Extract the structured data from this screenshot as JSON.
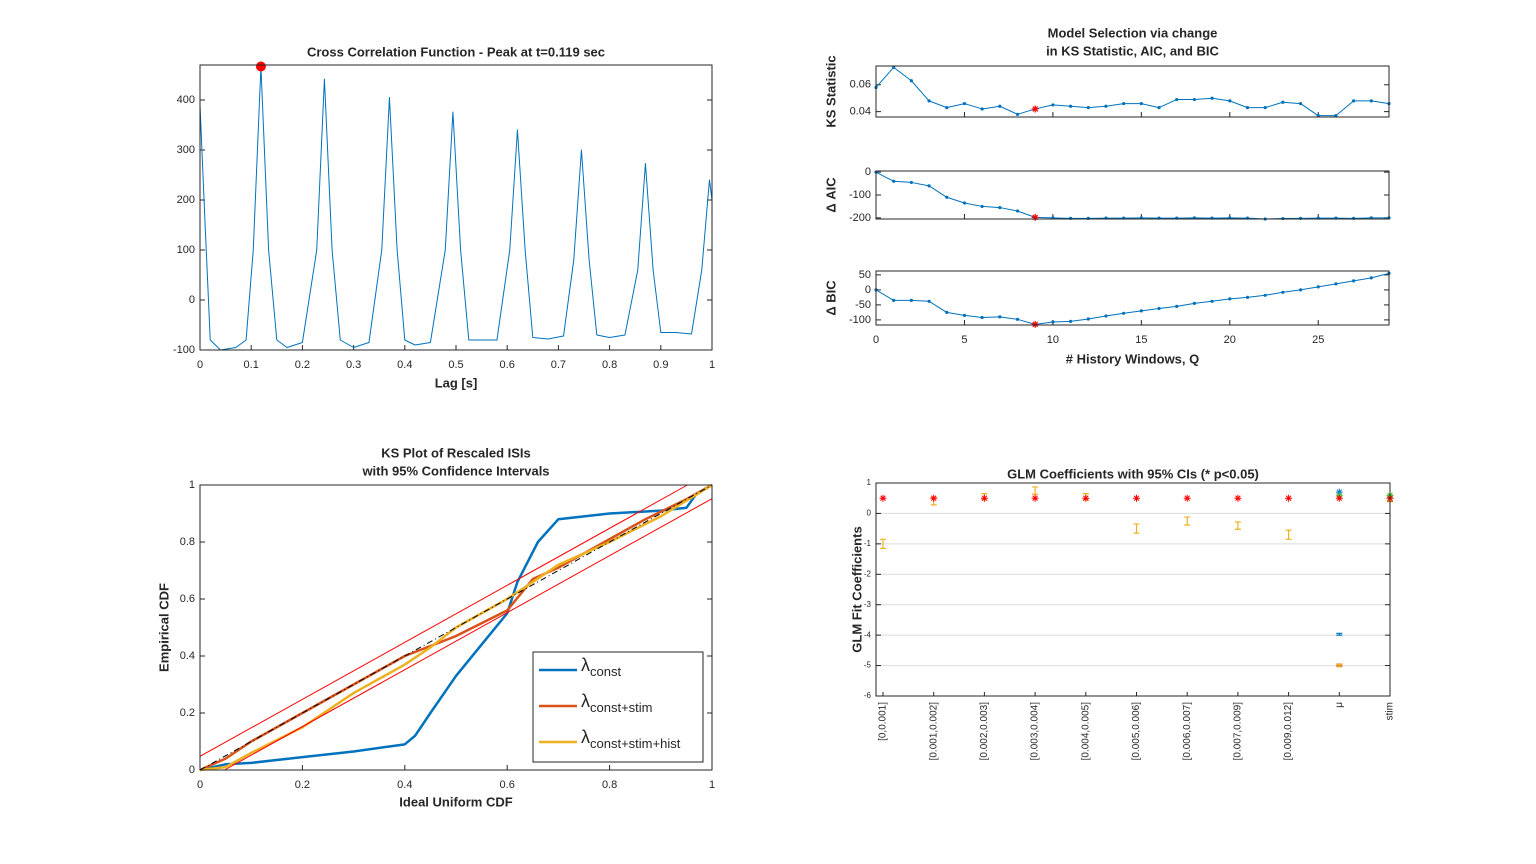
{
  "chart_data": [
    {
      "type": "line",
      "title": "Cross Correlation Function - Peak at t=0.119 sec",
      "xlabel": "Lag [s]",
      "x": [
        0,
        0.01,
        0.02,
        0.04,
        0.07,
        0.09,
        0.104,
        0.119,
        0.134,
        0.15,
        0.17,
        0.2,
        0.228,
        0.243,
        0.258,
        0.274,
        0.3,
        0.33,
        0.355,
        0.37,
        0.385,
        0.4,
        0.42,
        0.45,
        0.479,
        0.494,
        0.509,
        0.525,
        0.55,
        0.58,
        0.605,
        0.62,
        0.635,
        0.65,
        0.68,
        0.71,
        0.73,
        0.745,
        0.76,
        0.775,
        0.8,
        0.83,
        0.855,
        0.87,
        0.885,
        0.9,
        0.93,
        0.96,
        0.98,
        0.995,
        1
      ],
      "series": [
        {
          "color": "#0072bd",
          "values": [
            390,
            150,
            -80,
            -100,
            -95,
            -80,
            100,
            467,
            100,
            -80,
            -95,
            -85,
            100,
            442,
            100,
            -80,
            -95,
            -85,
            100,
            405,
            100,
            -80,
            -90,
            -85,
            100,
            376,
            100,
            -80,
            -80,
            -80,
            100,
            340,
            100,
            -75,
            -78,
            -72,
            80,
            300,
            80,
            -70,
            -75,
            -70,
            60,
            273,
            60,
            -65,
            -65,
            -68,
            60,
            240,
            200
          ]
        }
      ],
      "highlight": {
        "x": 0.119,
        "y": 467,
        "color": "#ff0000",
        "marker": "circle"
      },
      "xlim": [
        0,
        1
      ],
      "ylim": [
        -100,
        470
      ],
      "xticks": [
        0,
        0.1,
        0.2,
        0.3,
        0.4,
        0.5,
        0.6,
        0.7,
        0.8,
        0.9,
        1
      ],
      "yticks": [
        -100,
        0,
        100,
        200,
        300,
        400
      ]
    },
    {
      "type": "line",
      "title": [
        "Model Selection via change",
        "in KS Statistic, AIC, and BIC"
      ],
      "ylabel": "KS Statistic",
      "marker": "dot",
      "x": [
        0,
        1,
        2,
        3,
        4,
        5,
        6,
        7,
        8,
        9,
        10,
        11,
        12,
        13,
        14,
        15,
        16,
        17,
        18,
        19,
        20,
        21,
        22,
        23,
        24,
        25,
        26,
        27,
        28,
        29
      ],
      "series": [
        {
          "color": "#0072bd",
          "values": [
            0.058,
            0.073,
            0.063,
            0.048,
            0.043,
            0.046,
            0.042,
            0.044,
            0.038,
            0.042,
            0.045,
            0.044,
            0.043,
            0.044,
            0.046,
            0.046,
            0.043,
            0.049,
            0.049,
            0.05,
            0.048,
            0.043,
            0.043,
            0.047,
            0.046,
            0.037,
            0.037,
            0.048,
            0.048,
            0.046
          ]
        }
      ],
      "highlight": {
        "x": 9,
        "y": 0.042,
        "color": "#ff0000",
        "marker": "star"
      },
      "xlim": [
        0,
        29
      ],
      "ylim": [
        0.036,
        0.074
      ],
      "yticks": [
        0.04,
        0.06
      ]
    },
    {
      "type": "line",
      "ylabel": "Δ AIC",
      "marker": "dot",
      "x": [
        0,
        1,
        2,
        3,
        4,
        5,
        6,
        7,
        8,
        9,
        10,
        11,
        12,
        13,
        14,
        15,
        16,
        17,
        18,
        19,
        20,
        21,
        22,
        23,
        24,
        25,
        26,
        27,
        28,
        29
      ],
      "series": [
        {
          "color": "#0072bd",
          "values": [
            0,
            -40,
            -45,
            -60,
            -110,
            -135,
            -150,
            -155,
            -170,
            -198,
            -200,
            -202,
            -202,
            -201,
            -201,
            -200,
            -201,
            -201,
            -200,
            -201,
            -200,
            -201,
            -205,
            -203,
            -202,
            -201,
            -201,
            -202,
            -200,
            -200
          ]
        }
      ],
      "highlight": {
        "x": 9,
        "y": -198,
        "color": "#ff0000",
        "marker": "star"
      },
      "xlim": [
        0,
        29
      ],
      "ylim": [
        -205,
        5
      ],
      "yticks": [
        -200,
        -100,
        0
      ]
    },
    {
      "type": "line",
      "ylabel": "Δ BIC",
      "xlabel": "# History Windows, Q",
      "marker": "dot",
      "x": [
        0,
        1,
        2,
        3,
        4,
        5,
        6,
        7,
        8,
        9,
        10,
        11,
        12,
        13,
        14,
        15,
        16,
        17,
        18,
        19,
        20,
        21,
        22,
        23,
        24,
        25,
        26,
        27,
        28,
        29
      ],
      "series": [
        {
          "color": "#0072bd",
          "values": [
            0,
            -35,
            -35,
            -38,
            -75,
            -85,
            -92,
            -90,
            -98,
            -115,
            -107,
            -105,
            -97,
            -87,
            -78,
            -70,
            -62,
            -55,
            -45,
            -38,
            -30,
            -25,
            -18,
            -8,
            0,
            10,
            20,
            30,
            40,
            55
          ]
        }
      ],
      "highlight": {
        "x": 9,
        "y": -115,
        "color": "#ff0000",
        "marker": "star"
      },
      "xlim": [
        0,
        29
      ],
      "ylim": [
        -117,
        63
      ],
      "xticks": [
        0,
        5,
        10,
        15,
        20,
        25
      ],
      "yticks": [
        -100,
        -50,
        0,
        50
      ]
    },
    {
      "type": "line",
      "title": [
        "KS Plot of Rescaled ISIs",
        "with 95% Confidence Intervals"
      ],
      "xlabel": "Ideal Uniform CDF",
      "ylabel": "Empirical CDF",
      "legend": "lower right",
      "series": [
        {
          "name": "λ",
          "subscript": "const",
          "color": "#0072bd",
          "line_width": 2.5,
          "x": [
            0,
            0.05,
            0.1,
            0.2,
            0.3,
            0.4,
            0.42,
            0.45,
            0.5,
            0.55,
            0.6,
            0.62,
            0.66,
            0.7,
            0.8,
            0.9,
            0.95,
            0.97,
            1
          ],
          "values": [
            0,
            0.02,
            0.025,
            0.045,
            0.065,
            0.09,
            0.12,
            0.2,
            0.33,
            0.44,
            0.55,
            0.66,
            0.8,
            0.88,
            0.9,
            0.91,
            0.92,
            0.97,
            1
          ]
        },
        {
          "name": "λ",
          "subscript": "const+stim",
          "color": "#d95319",
          "line_width": 2.5,
          "x": [
            0,
            0.05,
            0.1,
            0.2,
            0.3,
            0.4,
            0.5,
            0.6,
            0.65,
            0.7,
            0.8,
            0.87,
            0.95,
            1
          ],
          "values": [
            0,
            0.04,
            0.1,
            0.2,
            0.3,
            0.4,
            0.47,
            0.56,
            0.67,
            0.71,
            0.81,
            0.88,
            0.95,
            1
          ]
        },
        {
          "name": "λ",
          "subscript": "const+stim+hist",
          "color": "#edb120",
          "line_width": 2.5,
          "x": [
            0,
            0.05,
            0.1,
            0.2,
            0.3,
            0.4,
            0.45,
            0.5,
            0.6,
            0.65,
            0.7,
            0.8,
            0.9,
            1
          ],
          "values": [
            0,
            0.01,
            0.06,
            0.15,
            0.27,
            0.37,
            0.43,
            0.5,
            0.6,
            0.66,
            0.72,
            0.8,
            0.89,
            1
          ]
        },
        {
          "color": "#ff0000",
          "x": [
            0,
            0.952
          ],
          "values": [
            0.048,
            1
          ]
        },
        {
          "color": "#ff0000",
          "x": [
            0.048,
            1
          ],
          "values": [
            0,
            0.952
          ]
        },
        {
          "color": "#000000",
          "dash": "dashdot",
          "x": [
            0,
            1
          ],
          "values": [
            0,
            1
          ]
        }
      ],
      "xlim": [
        0,
        1
      ],
      "ylim": [
        0,
        1
      ],
      "xticks": [
        0,
        0.2,
        0.4,
        0.6,
        0.8,
        1
      ],
      "yticks": [
        0,
        0.2,
        0.4,
        0.6,
        0.8,
        1
      ]
    },
    {
      "type": "errorbar",
      "title": "GLM Coefficients with 95% CIs (* p<0.05)",
      "ylabel": "GLM Fit Coefficients",
      "grid": true,
      "categories": [
        "[0,0.001]",
        "[0.001,0.002]",
        "[0.002,0.003]",
        "[0.003,0.004]",
        "[0.004,0.005]",
        "[0.005,0.006]",
        "[0.006,0.007]",
        "[0.007,0.009]",
        "[0.009,0.012]",
        "μ",
        "stim"
      ],
      "series": [
        {
          "color": "#0072bd",
          "values": [
            null,
            null,
            null,
            null,
            null,
            null,
            null,
            null,
            null,
            -3.97,
            null
          ],
          "errors": [
            null,
            null,
            null,
            null,
            null,
            null,
            null,
            null,
            null,
            0.03,
            null
          ]
        },
        {
          "color": "#d95319",
          "values": [
            null,
            null,
            null,
            null,
            null,
            null,
            null,
            null,
            null,
            -4.98,
            0.45
          ],
          "errors": [
            null,
            null,
            null,
            null,
            null,
            null,
            null,
            null,
            null,
            0.03,
            0.06
          ]
        },
        {
          "color": "#edb120",
          "values": [
            -1.0,
            0.4,
            0.55,
            0.75,
            0.55,
            -0.5,
            -0.25,
            -0.4,
            -0.7,
            -5.0,
            0.5
          ],
          "errors": [
            0.15,
            0.12,
            0.1,
            0.12,
            0.1,
            0.15,
            0.13,
            0.12,
            0.15,
            0.04,
            0.08
          ]
        },
        {
          "color": "#0072bd",
          "marker": "star",
          "values": [
            null,
            null,
            null,
            null,
            null,
            null,
            null,
            null,
            null,
            0.7,
            null
          ]
        },
        {
          "color": "#33cc33",
          "marker": "star",
          "values": [
            null,
            null,
            null,
            null,
            null,
            null,
            null,
            null,
            null,
            0.58,
            0.6
          ]
        },
        {
          "color": "#ff0000",
          "marker": "star",
          "values": [
            0.5,
            0.5,
            0.5,
            0.5,
            0.5,
            0.5,
            0.5,
            0.5,
            0.5,
            0.5,
            0.5
          ]
        }
      ],
      "ylim": [
        -6,
        1
      ],
      "yticks": [
        -6,
        -5,
        -4,
        -3,
        -2,
        -1,
        0,
        1
      ]
    }
  ]
}
